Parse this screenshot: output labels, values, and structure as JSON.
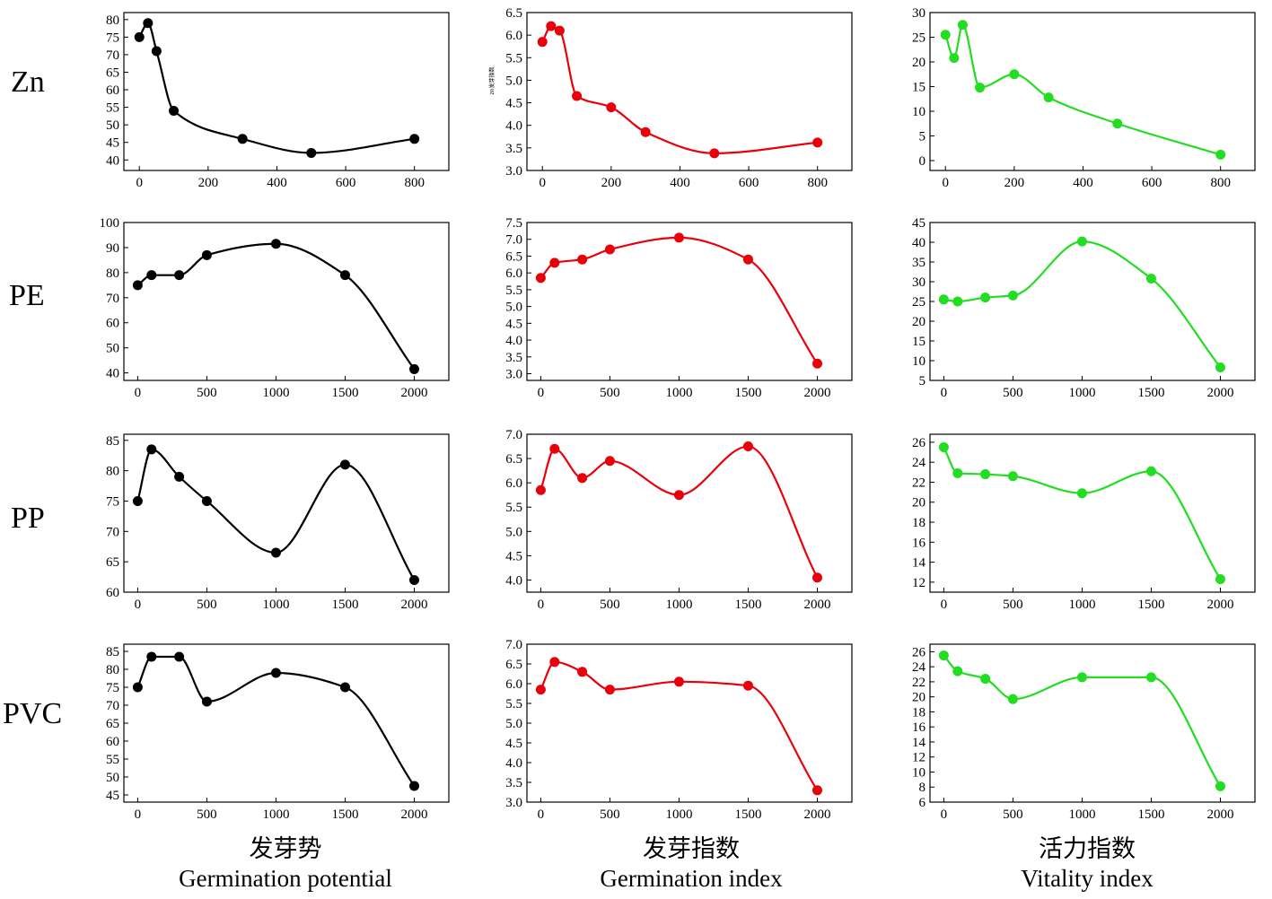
{
  "rows": [
    {
      "label": "Zn"
    },
    {
      "label": "PE"
    },
    {
      "label": "PP"
    },
    {
      "label": "PVC"
    }
  ],
  "columns": [
    {
      "title_cn": "发芽势",
      "title_en": "Germination potential",
      "color": "#000000"
    },
    {
      "title_cn": "发芽指数",
      "title_en": "Germination index",
      "color": "#e8000b"
    },
    {
      "title_cn": "活力指数",
      "title_en": "Vitality index",
      "color": "#22dd22"
    }
  ],
  "chart_data": [
    {
      "type": "line",
      "row": "Zn",
      "column": "Germination potential",
      "x": [
        0,
        25,
        50,
        100,
        300,
        500,
        800
      ],
      "y": [
        75,
        79,
        71,
        54,
        46,
        42,
        46
      ],
      "xlim": [
        -45,
        900
      ],
      "ylim": [
        37,
        82
      ],
      "xticks": [
        0,
        200,
        400,
        600,
        800
      ],
      "yticks": [
        40,
        45,
        50,
        55,
        60,
        65,
        70,
        75,
        80
      ]
    },
    {
      "type": "line",
      "row": "Zn",
      "column": "Germination index",
      "ylabel": "zn发芽指数",
      "x": [
        0,
        25,
        50,
        100,
        200,
        300,
        500,
        800
      ],
      "y": [
        5.85,
        6.2,
        6.1,
        4.65,
        4.4,
        3.85,
        3.38,
        3.62
      ],
      "xlim": [
        -45,
        900
      ],
      "ylim": [
        3.0,
        6.5
      ],
      "xticks": [
        0,
        200,
        400,
        600,
        800
      ],
      "yticks": [
        3.0,
        3.5,
        4.0,
        4.5,
        5.0,
        5.5,
        6.0,
        6.5
      ]
    },
    {
      "type": "line",
      "row": "Zn",
      "column": "Vitality index",
      "x": [
        0,
        25,
        50,
        100,
        200,
        300,
        500,
        800
      ],
      "y": [
        25.5,
        20.8,
        27.5,
        14.8,
        17.5,
        12.8,
        7.5,
        1.2
      ],
      "xlim": [
        -45,
        900
      ],
      "ylim": [
        -2,
        30
      ],
      "xticks": [
        0,
        200,
        400,
        600,
        800
      ],
      "yticks": [
        0,
        5,
        10,
        15,
        20,
        25,
        30
      ]
    },
    {
      "type": "line",
      "row": "PE",
      "column": "Germination potential",
      "x": [
        0,
        100,
        300,
        500,
        1000,
        1500,
        2000
      ],
      "y": [
        75,
        79,
        79,
        87,
        91.5,
        79,
        41.5
      ],
      "xlim": [
        -100,
        2250
      ],
      "ylim": [
        37,
        100
      ],
      "xticks": [
        0,
        500,
        1000,
        1500,
        2000
      ],
      "yticks": [
        40,
        50,
        60,
        70,
        80,
        90,
        100
      ]
    },
    {
      "type": "line",
      "row": "PE",
      "column": "Germination index",
      "x": [
        0,
        100,
        300,
        500,
        1000,
        1500,
        2000
      ],
      "y": [
        5.85,
        6.3,
        6.4,
        6.7,
        7.05,
        6.4,
        3.3
      ],
      "xlim": [
        -100,
        2250
      ],
      "ylim": [
        2.8,
        7.5
      ],
      "xticks": [
        0,
        500,
        1000,
        1500,
        2000
      ],
      "yticks": [
        3.0,
        3.5,
        4.0,
        4.5,
        5.0,
        5.5,
        6.0,
        6.5,
        7.0,
        7.5
      ]
    },
    {
      "type": "line",
      "row": "PE",
      "column": "Vitality index",
      "x": [
        0,
        100,
        300,
        500,
        1000,
        1500,
        2000
      ],
      "y": [
        25.5,
        25.0,
        26.0,
        26.5,
        40.2,
        30.8,
        8.3
      ],
      "xlim": [
        -100,
        2250
      ],
      "ylim": [
        5,
        45
      ],
      "xticks": [
        0,
        500,
        1000,
        1500,
        2000
      ],
      "yticks": [
        5,
        10,
        15,
        20,
        25,
        30,
        35,
        40,
        45
      ]
    },
    {
      "type": "line",
      "row": "PP",
      "column": "Germination potential",
      "x": [
        0,
        100,
        300,
        500,
        1000,
        1500,
        2000
      ],
      "y": [
        75,
        83.5,
        79,
        75,
        66.5,
        81,
        62
      ],
      "xlim": [
        -100,
        2250
      ],
      "ylim": [
        60,
        86
      ],
      "xticks": [
        0,
        500,
        1000,
        1500,
        2000
      ],
      "yticks": [
        60,
        65,
        70,
        75,
        80,
        85
      ]
    },
    {
      "type": "line",
      "row": "PP",
      "column": "Germination index",
      "x": [
        0,
        100,
        300,
        500,
        1000,
        1500,
        2000
      ],
      "y": [
        5.85,
        6.7,
        6.1,
        6.45,
        5.75,
        6.75,
        4.05
      ],
      "xlim": [
        -100,
        2250
      ],
      "ylim": [
        3.75,
        7.0
      ],
      "xticks": [
        0,
        500,
        1000,
        1500,
        2000
      ],
      "yticks": [
        4.0,
        4.5,
        5.0,
        5.5,
        6.0,
        6.5,
        7.0
      ]
    },
    {
      "type": "line",
      "row": "PP",
      "column": "Vitality index",
      "x": [
        0,
        100,
        300,
        500,
        1000,
        1500,
        2000
      ],
      "y": [
        25.5,
        22.9,
        22.8,
        22.6,
        20.9,
        23.1,
        12.3
      ],
      "xlim": [
        -100,
        2250
      ],
      "ylim": [
        11,
        26.8
      ],
      "xticks": [
        0,
        500,
        1000,
        1500,
        2000
      ],
      "yticks": [
        12,
        14,
        16,
        18,
        20,
        22,
        24,
        26
      ]
    },
    {
      "type": "line",
      "row": "PVC",
      "column": "Germination potential",
      "x": [
        0,
        100,
        300,
        500,
        1000,
        1500,
        2000
      ],
      "y": [
        75,
        83.5,
        83.5,
        71,
        79,
        75,
        47.5
      ],
      "xlim": [
        -100,
        2250
      ],
      "ylim": [
        43,
        87
      ],
      "xticks": [
        0,
        500,
        1000,
        1500,
        2000
      ],
      "yticks": [
        45,
        50,
        55,
        60,
        65,
        70,
        75,
        80,
        85
      ]
    },
    {
      "type": "line",
      "row": "PVC",
      "column": "Germination index",
      "x": [
        0,
        100,
        300,
        500,
        1000,
        1500,
        2000
      ],
      "y": [
        5.85,
        6.55,
        6.3,
        5.85,
        6.05,
        5.95,
        3.3
      ],
      "xlim": [
        -100,
        2250
      ],
      "ylim": [
        3.0,
        7.0
      ],
      "xticks": [
        0,
        500,
        1000,
        1500,
        2000
      ],
      "yticks": [
        3.0,
        3.5,
        4.0,
        4.5,
        5.0,
        5.5,
        6.0,
        6.5,
        7.0
      ]
    },
    {
      "type": "line",
      "row": "PVC",
      "column": "Vitality index",
      "x": [
        0,
        100,
        300,
        500,
        1000,
        1500,
        2000
      ],
      "y": [
        25.5,
        23.4,
        22.4,
        19.7,
        22.6,
        22.6,
        8.1
      ],
      "xlim": [
        -100,
        2250
      ],
      "ylim": [
        6,
        27
      ],
      "xticks": [
        0,
        500,
        1000,
        1500,
        2000
      ],
      "yticks": [
        6,
        8,
        10,
        12,
        14,
        16,
        18,
        20,
        22,
        24,
        26
      ]
    }
  ]
}
